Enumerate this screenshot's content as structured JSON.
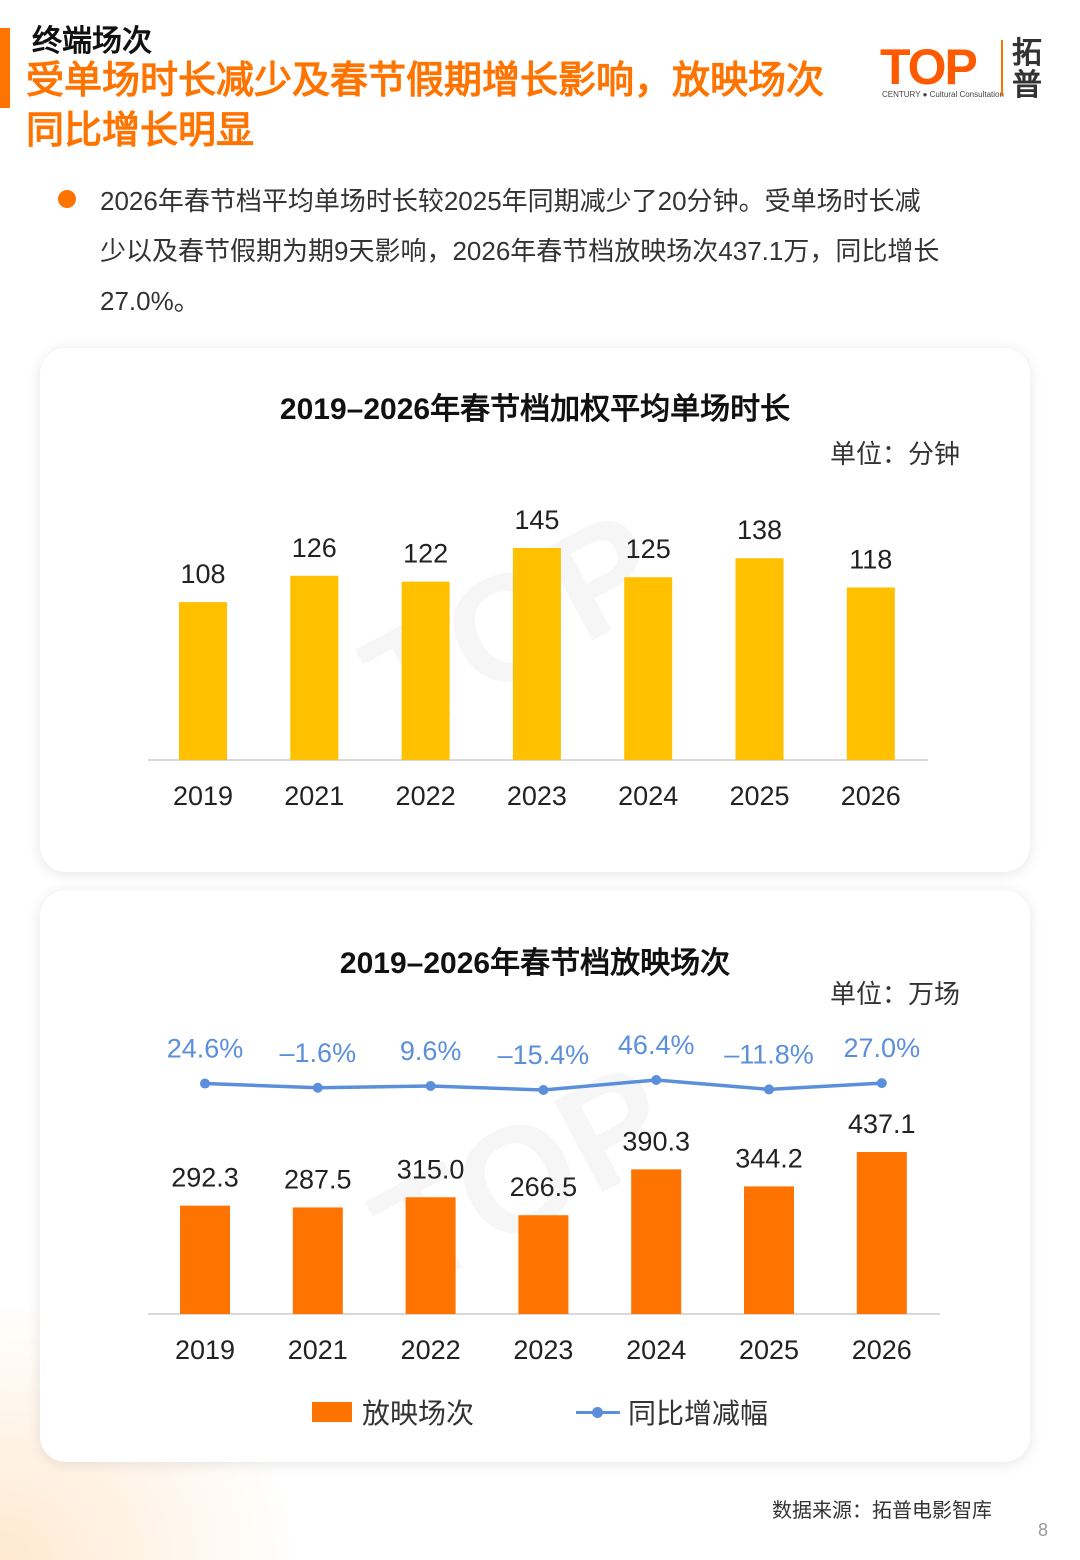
{
  "header": {
    "section": "终端场次",
    "title_line1": "受单场时长减少及春节假期增长影响，放映场次",
    "title_line2": "同比增长明显"
  },
  "logo": {
    "word": "TOP",
    "sub": "CENTURY ● Cultural Consultation",
    "cn": "拓普"
  },
  "bullet": {
    "line1": "2026年春节档平均单场时长较2025年同期减少了20分钟。受单场时长减",
    "line2": "少以及春节假期为期9天影响，2026年春节档放映场次437.1万，同比增长",
    "line3": "27.0%。"
  },
  "chart1": {
    "title": "2019–2026年春节档加权平均单场时长",
    "unit": "单位：分钟"
  },
  "chart2": {
    "title": "2019–2026年春节档放映场次",
    "unit": "单位：万场",
    "legend_bar": "放映场次",
    "legend_line": "同比增减幅"
  },
  "chart_data": [
    {
      "type": "bar",
      "title": "2019–2026年春节档加权平均单场时长",
      "unit": "单位：分钟",
      "categories": [
        "2019",
        "2021",
        "2022",
        "2023",
        "2024",
        "2025",
        "2026"
      ],
      "values": [
        108,
        126,
        122,
        145,
        125,
        138,
        118
      ],
      "labels": [
        "108",
        "126",
        "122",
        "145",
        "125",
        "138",
        "118"
      ],
      "ylim": [
        0,
        145
      ],
      "color": "#FFC000",
      "grid": false
    },
    {
      "type": "bar",
      "title": "2019–2026年春节档放映场次",
      "unit": "单位：万场",
      "categories": [
        "2019",
        "2021",
        "2022",
        "2023",
        "2024",
        "2025",
        "2026"
      ],
      "series": [
        {
          "name": "放映场次",
          "values": [
            292.3,
            287.5,
            315.0,
            266.5,
            390.3,
            344.2,
            437.1
          ],
          "labels": [
            "292.3",
            "287.5",
            "315.0",
            "266.5",
            "390.3",
            "344.2",
            "437.1"
          ],
          "color": "#FF7300"
        },
        {
          "name": "同比增减幅",
          "type": "line",
          "values": [
            24.6,
            -1.6,
            9.6,
            -15.4,
            46.4,
            -11.8,
            27.0
          ],
          "labels": [
            "24.6%",
            "–1.6%",
            "9.6%",
            "–15.4%",
            "46.4%",
            "–11.8%",
            "27.0%"
          ],
          "color": "#5B8FDB"
        }
      ],
      "ylim": [
        0,
        437.1
      ],
      "legend": "bottom",
      "grid": false
    }
  ],
  "footer": {
    "source": "数据来源：拓普电影智库",
    "page": "8"
  }
}
